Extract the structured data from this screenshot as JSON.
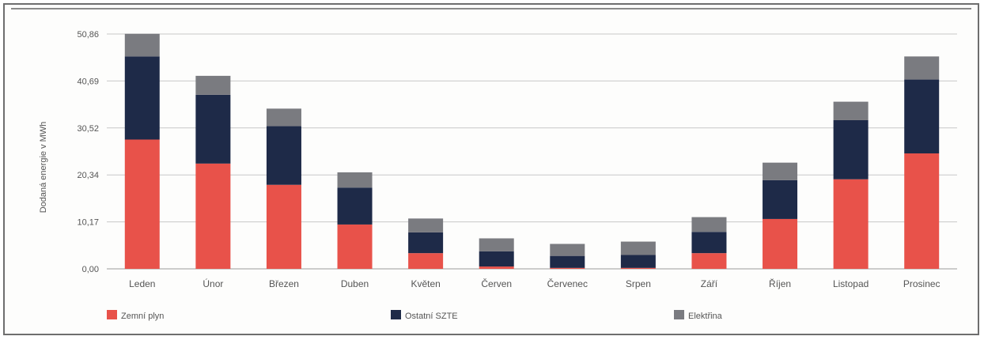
{
  "chart_data": {
    "type": "bar",
    "stacked": true,
    "title": "",
    "xlabel": "",
    "ylabel": "Dodaná energie v MWh",
    "ylim": [
      0,
      50.86
    ],
    "yticks": [
      "0,00",
      "10,17",
      "20,34",
      "30,52",
      "40,69",
      "50,86"
    ],
    "ytick_values": [
      0,
      10.17,
      20.34,
      30.52,
      40.69,
      50.86
    ],
    "grid": true,
    "legend_position": "bottom",
    "categories": [
      "Leden",
      "Únor",
      "Březen",
      "Duben",
      "Květen",
      "Červen",
      "Červenec",
      "Srpen",
      "Září",
      "Říjen",
      "Listopad",
      "Prosinec"
    ],
    "series": [
      {
        "name": "Zemní plyn",
        "color": "#e8524a",
        "values": [
          28.0,
          22.8,
          18.2,
          9.6,
          3.4,
          0.5,
          0.2,
          0.2,
          3.4,
          10.8,
          19.4,
          25.0
        ]
      },
      {
        "name": "Ostatní SZTE",
        "color": "#1e2a48",
        "values": [
          18.0,
          14.9,
          12.7,
          8.0,
          4.5,
          3.3,
          2.6,
          2.8,
          4.6,
          8.4,
          12.8,
          16.0
        ]
      },
      {
        "name": "Elektřina",
        "color": "#7a7b80",
        "values": [
          4.9,
          4.1,
          3.8,
          3.3,
          3.0,
          2.8,
          2.6,
          2.9,
          3.2,
          3.8,
          4.0,
          5.0
        ]
      }
    ]
  }
}
